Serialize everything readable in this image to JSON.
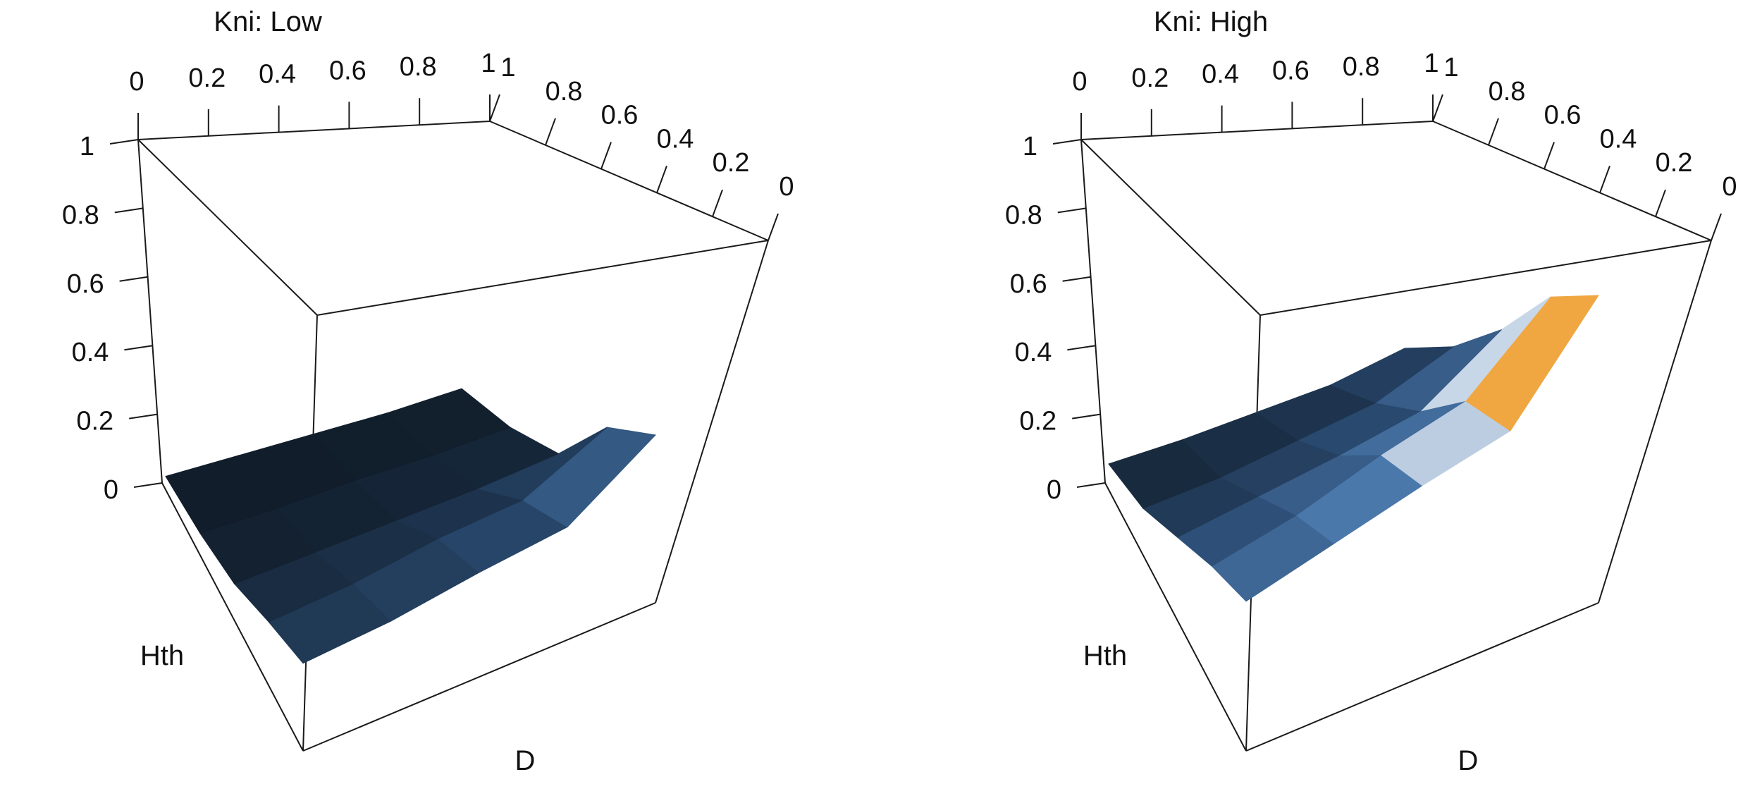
{
  "chart_data": [
    {
      "type": "surface3d",
      "title": "Kni: Low",
      "x_axis": {
        "label": "D",
        "ticks": [
          "0",
          "0.2",
          "0.4",
          "0.6",
          "0.8",
          "1"
        ],
        "range": [
          0,
          1
        ]
      },
      "y_axis": {
        "label": "Hth",
        "ticks": [
          "1",
          "0.8",
          "0.6",
          "0.4",
          "0.2",
          "0"
        ],
        "range": [
          0,
          1
        ]
      },
      "z_axis": {
        "label": "",
        "ticks": [
          "0",
          "0.2",
          "0.4",
          "0.6",
          "0.8",
          "1"
        ],
        "range": [
          0,
          1
        ]
      },
      "grid_d": [
        0,
        0.25,
        0.5,
        0.75,
        1
      ],
      "grid_hth": [
        0,
        0.25,
        0.5,
        0.75,
        1
      ],
      "z": [
        [
          0.18,
          0.2,
          0.24,
          0.27,
          0.45
        ],
        [
          0.12,
          0.14,
          0.18,
          0.2,
          0.33
        ],
        [
          0.05,
          0.06,
          0.07,
          0.08,
          0.1
        ],
        [
          0.02,
          0.02,
          0.03,
          0.03,
          0.04
        ],
        [
          0.01,
          0.01,
          0.01,
          0.01,
          0.02
        ]
      ],
      "max_z": 0.45,
      "colors": {
        "low": "#0f1a26",
        "mid": "#4b79ad",
        "high": "#f2f6fb"
      }
    },
    {
      "type": "surface3d",
      "title": "Kni: High",
      "x_axis": {
        "label": "D",
        "ticks": [
          "0",
          "0.2",
          "0.4",
          "0.6",
          "0.8",
          "1"
        ],
        "range": [
          0,
          1
        ]
      },
      "y_axis": {
        "label": "Hth",
        "ticks": [
          "1",
          "0.8",
          "0.6",
          "0.4",
          "0.2",
          "0"
        ],
        "range": [
          0,
          1
        ]
      },
      "z_axis": {
        "label": "",
        "ticks": [
          "0",
          "0.2",
          "0.4",
          "0.6",
          "0.8",
          "1"
        ],
        "range": [
          0,
          1
        ]
      },
      "grid_d": [
        0,
        0.25,
        0.5,
        0.75,
        1
      ],
      "grid_hth": [
        0,
        0.25,
        0.5,
        0.75,
        1
      ],
      "z": [
        [
          0.38,
          0.45,
          0.52,
          0.58,
          0.9
        ],
        [
          0.3,
          0.36,
          0.45,
          0.52,
          0.75
        ],
        [
          0.2,
          0.24,
          0.28,
          0.33,
          0.5
        ],
        [
          0.1,
          0.12,
          0.16,
          0.2,
          0.3
        ],
        [
          0.05,
          0.06,
          0.08,
          0.1,
          0.15
        ]
      ],
      "max_z": 0.9,
      "colors": {
        "low": "#0f1a26",
        "mid": "#4b79ad",
        "high": "#f2f6fb",
        "peak_mid": "#f0a030",
        "peak_high": "#b05020"
      }
    }
  ]
}
